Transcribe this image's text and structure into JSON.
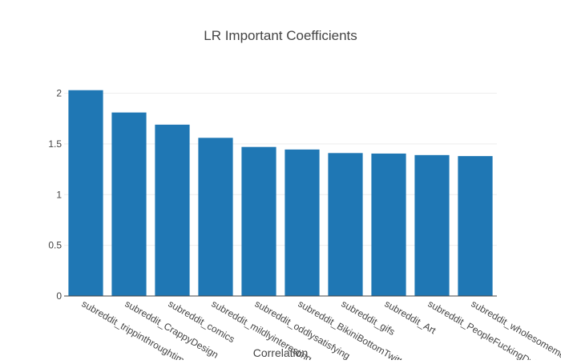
{
  "chart_data": {
    "type": "bar",
    "title": "LR Important Coefficients",
    "xlabel": "Correlation",
    "ylabel": "",
    "categories": [
      "subreddit_trippinthroughtime",
      "subreddit_CrappyDesign",
      "subreddit_comics",
      "subreddit_mildlyinteresting",
      "subreddit_oddlysatisfying",
      "subreddit_BikiniBottomTwitter",
      "subreddit_gifs",
      "subreddit_Art",
      "subreddit_PeopleFuckingDying",
      "subreddit_wholesomememes"
    ],
    "values": [
      2.03,
      1.81,
      1.69,
      1.56,
      1.47,
      1.445,
      1.41,
      1.405,
      1.39,
      1.38
    ],
    "ylim": [
      0,
      2.02
    ],
    "yticks": [
      0,
      0.5,
      1,
      1.5,
      2
    ],
    "ytick_labels": [
      "0",
      "0.5",
      "1",
      "1.5",
      "2"
    ],
    "grid": true,
    "bar_color": "#1f77b4",
    "gridline_color": "#eeeeee",
    "axis_color": "#444444"
  }
}
